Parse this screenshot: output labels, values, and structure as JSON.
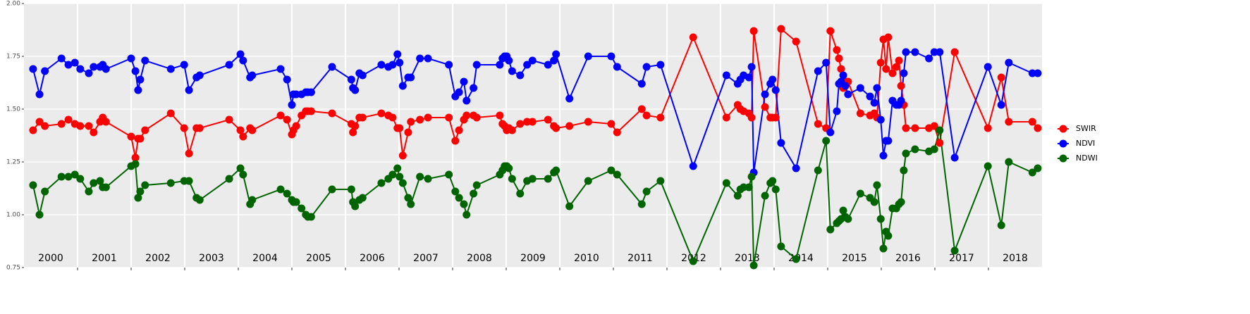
{
  "chart_data": {
    "type": "line",
    "x": [
      2000.17,
      2000.29,
      2000.39,
      2000.7,
      2000.83,
      2000.95,
      2001.05,
      2001.21,
      2001.3,
      2001.42,
      2001.47,
      2001.53,
      2002.0,
      2002.08,
      2002.13,
      2002.17,
      2002.26,
      2002.74,
      2002.99,
      2003.08,
      2003.22,
      2003.28,
      2003.83,
      2004.04,
      2004.09,
      2004.22,
      2004.26,
      2004.79,
      2004.91,
      2005.0,
      2005.03,
      2005.08,
      2005.18,
      2005.26,
      2005.3,
      2005.36,
      2005.75,
      2006.11,
      2006.14,
      2006.18,
      2006.26,
      2006.32,
      2006.67,
      2006.8,
      2006.88,
      2006.97,
      2007.01,
      2007.07,
      2007.17,
      2007.22,
      2007.39,
      2007.54,
      2007.93,
      2008.05,
      2008.12,
      2008.21,
      2008.26,
      2008.39,
      2008.45,
      2008.88,
      2008.93,
      2008.97,
      2009.01,
      2009.05,
      2009.11,
      2009.26,
      2009.39,
      2009.49,
      2009.78,
      2009.89,
      2009.93,
      2010.18,
      2010.53,
      2010.96,
      2011.07,
      2011.53,
      2011.62,
      2011.88,
      2012.49,
      2013.11,
      2013.32,
      2013.37,
      2013.43,
      2013.53,
      2013.58,
      2013.62,
      2013.83,
      2013.93,
      2013.97,
      2014.03,
      2014.13,
      2014.41,
      2014.82,
      2014.97,
      2015.05,
      2015.17,
      2015.21,
      2015.25,
      2015.29,
      2015.33,
      2015.38,
      2015.61,
      2015.79,
      2015.87,
      2015.92,
      2015.99,
      2016.04,
      2016.09,
      2016.13,
      2016.21,
      2016.28,
      2016.33,
      2016.37,
      2016.42,
      2016.46,
      2016.63,
      2016.89,
      2016.99,
      2017.09,
      2017.37,
      2017.99,
      2018.24,
      2018.38,
      2018.82,
      2018.92
    ],
    "series": [
      {
        "name": "SWIR",
        "color": "#ff0000",
        "values": [
          1.4,
          1.44,
          1.42,
          1.43,
          1.45,
          1.43,
          1.42,
          1.42,
          1.39,
          1.44,
          1.46,
          1.44,
          1.37,
          1.27,
          1.36,
          1.36,
          1.4,
          1.48,
          1.41,
          1.29,
          1.41,
          1.41,
          1.45,
          1.4,
          1.37,
          1.41,
          1.4,
          1.47,
          1.45,
          1.38,
          1.4,
          1.42,
          1.47,
          1.49,
          1.49,
          1.49,
          1.48,
          1.43,
          1.39,
          1.42,
          1.46,
          1.46,
          1.48,
          1.47,
          1.46,
          1.41,
          1.41,
          1.28,
          1.39,
          1.44,
          1.45,
          1.46,
          1.46,
          1.35,
          1.4,
          1.45,
          1.47,
          1.47,
          1.46,
          1.47,
          1.43,
          1.42,
          1.4,
          1.41,
          1.4,
          1.43,
          1.44,
          1.44,
          1.45,
          1.42,
          1.41,
          1.42,
          1.44,
          1.43,
          1.39,
          1.5,
          1.47,
          1.46,
          1.84,
          1.46,
          1.52,
          1.5,
          1.49,
          1.48,
          1.46,
          1.87,
          1.51,
          1.46,
          1.46,
          1.46,
          1.88,
          1.82,
          1.43,
          1.41,
          1.87,
          1.78,
          1.74,
          1.69,
          1.6,
          1.63,
          1.63,
          1.48,
          1.47,
          1.48,
          1.46,
          1.72,
          1.83,
          1.69,
          1.84,
          1.67,
          1.7,
          1.73,
          1.61,
          1.52,
          1.41,
          1.41,
          1.41,
          1.42,
          1.34,
          1.77,
          1.41,
          1.65,
          1.44,
          1.44,
          1.41
        ]
      },
      {
        "name": "NDVI",
        "color": "#0000ff",
        "values": [
          1.69,
          1.57,
          1.68,
          1.74,
          1.71,
          1.72,
          1.69,
          1.67,
          1.7,
          1.7,
          1.71,
          1.69,
          1.74,
          1.68,
          1.59,
          1.64,
          1.73,
          1.69,
          1.71,
          1.59,
          1.65,
          1.66,
          1.71,
          1.76,
          1.73,
          1.65,
          1.66,
          1.69,
          1.64,
          1.52,
          1.57,
          1.57,
          1.57,
          1.58,
          1.58,
          1.58,
          1.7,
          1.64,
          1.6,
          1.59,
          1.67,
          1.66,
          1.71,
          1.7,
          1.71,
          1.76,
          1.72,
          1.61,
          1.65,
          1.65,
          1.74,
          1.74,
          1.71,
          1.56,
          1.58,
          1.63,
          1.54,
          1.6,
          1.71,
          1.71,
          1.74,
          1.75,
          1.75,
          1.73,
          1.68,
          1.66,
          1.71,
          1.73,
          1.71,
          1.73,
          1.76,
          1.55,
          1.75,
          1.75,
          1.7,
          1.62,
          1.7,
          1.71,
          1.23,
          1.66,
          1.62,
          1.64,
          1.66,
          1.65,
          1.7,
          1.2,
          1.57,
          1.62,
          1.64,
          1.59,
          1.34,
          1.22,
          1.68,
          1.72,
          1.39,
          1.49,
          1.62,
          1.63,
          1.66,
          1.61,
          1.57,
          1.6,
          1.56,
          1.53,
          1.6,
          1.45,
          1.28,
          1.35,
          1.35,
          1.54,
          1.52,
          1.52,
          1.54,
          1.67,
          1.77,
          1.77,
          1.74,
          1.77,
          1.77,
          1.27,
          1.7,
          1.52,
          1.72,
          1.67,
          1.67
        ]
      },
      {
        "name": "NDWI",
        "color": "#006400",
        "values": [
          1.14,
          1.0,
          1.11,
          1.18,
          1.18,
          1.19,
          1.17,
          1.11,
          1.15,
          1.16,
          1.13,
          1.13,
          1.23,
          1.24,
          1.08,
          1.11,
          1.14,
          1.15,
          1.16,
          1.16,
          1.08,
          1.07,
          1.17,
          1.22,
          1.19,
          1.05,
          1.07,
          1.12,
          1.1,
          1.07,
          1.06,
          1.06,
          1.03,
          1.0,
          0.99,
          0.99,
          1.12,
          1.12,
          1.06,
          1.04,
          1.07,
          1.08,
          1.15,
          1.17,
          1.19,
          1.22,
          1.18,
          1.15,
          1.08,
          1.05,
          1.18,
          1.17,
          1.19,
          1.11,
          1.08,
          1.05,
          1.0,
          1.1,
          1.14,
          1.19,
          1.21,
          1.23,
          1.23,
          1.22,
          1.17,
          1.1,
          1.16,
          1.17,
          1.17,
          1.2,
          1.21,
          1.04,
          1.16,
          1.21,
          1.19,
          1.05,
          1.11,
          1.16,
          0.78,
          1.15,
          1.09,
          1.12,
          1.13,
          1.13,
          1.18,
          0.76,
          1.09,
          1.15,
          1.16,
          1.12,
          0.85,
          0.79,
          1.21,
          1.35,
          0.93,
          0.96,
          0.97,
          0.98,
          1.02,
          0.99,
          0.98,
          1.1,
          1.08,
          1.06,
          1.14,
          0.98,
          0.84,
          0.92,
          0.9,
          1.03,
          1.03,
          1.05,
          1.06,
          1.21,
          1.29,
          1.31,
          1.3,
          1.31,
          1.4,
          0.83,
          1.23,
          0.95,
          1.25,
          1.2,
          1.22
        ]
      }
    ],
    "xlim": [
      2000,
      2019
    ],
    "year_lines": [
      2001,
      2002,
      2003,
      2004,
      2005,
      2006,
      2007,
      2008,
      2009,
      2010,
      2011,
      2012,
      2013,
      2014,
      2015,
      2016,
      2017,
      2018
    ],
    "xticks": [
      {
        "value": 2000.5,
        "label": "2000"
      },
      {
        "value": 2001.5,
        "label": "2001"
      },
      {
        "value": 2002.5,
        "label": "2002"
      },
      {
        "value": 2003.5,
        "label": "2003"
      },
      {
        "value": 2004.5,
        "label": "2004"
      },
      {
        "value": 2005.5,
        "label": "2005"
      },
      {
        "value": 2006.5,
        "label": "2006"
      },
      {
        "value": 2007.5,
        "label": "2007"
      },
      {
        "value": 2008.5,
        "label": "2008"
      },
      {
        "value": 2009.5,
        "label": "2009"
      },
      {
        "value": 2010.5,
        "label": "2010"
      },
      {
        "value": 2011.5,
        "label": "2011"
      },
      {
        "value": 2012.5,
        "label": "2012"
      },
      {
        "value": 2013.5,
        "label": "2013"
      },
      {
        "value": 2014.5,
        "label": "2014"
      },
      {
        "value": 2015.5,
        "label": "2015"
      },
      {
        "value": 2016.5,
        "label": "2016"
      },
      {
        "value": 2017.5,
        "label": "2017"
      },
      {
        "value": 2018.5,
        "label": "2018"
      }
    ],
    "ylim": [
      0.75,
      2.0
    ],
    "yticks": [
      {
        "value": 0.75,
        "label": "0.75"
      },
      {
        "value": 1.0,
        "label": "1.00"
      },
      {
        "value": 1.25,
        "label": "1.25"
      },
      {
        "value": 1.5,
        "label": "1.50"
      },
      {
        "value": 1.75,
        "label": "1.75"
      },
      {
        "value": 2.0,
        "label": "2.00"
      }
    ],
    "grid": true,
    "legend": "right"
  }
}
